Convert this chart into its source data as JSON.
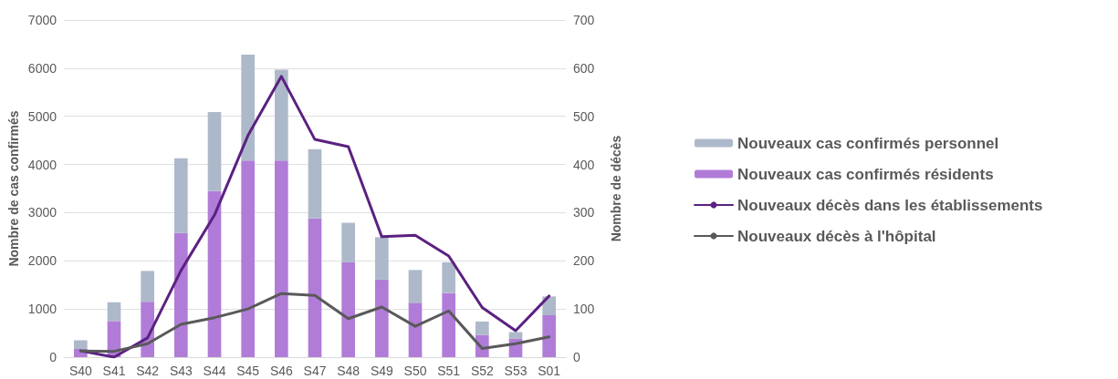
{
  "chart_data": {
    "type": "bar",
    "stacked": true,
    "ylabel": "Nombre de cas confirmés",
    "y2label": "Nombre de décès",
    "categories": [
      "S40",
      "S41",
      "S42",
      "S43",
      "S44",
      "S45",
      "S46",
      "S47",
      "S48",
      "S49",
      "S50",
      "S51",
      "S52",
      "S53",
      "S01"
    ],
    "series": [
      {
        "name": "Nouveaux cas confirmés résidents",
        "color": "#b07cd8",
        "values": [
          170,
          750,
          1150,
          2580,
          3450,
          4080,
          4080,
          2880,
          1970,
          1610,
          1130,
          1330,
          460,
          380,
          870
        ]
      },
      {
        "name": "Nouveaux cas confirmés personnel",
        "color": "#adb9ca",
        "values": [
          180,
          390,
          640,
          1550,
          1640,
          2200,
          1890,
          1440,
          820,
          880,
          680,
          640,
          280,
          140,
          390
        ]
      },
      {
        "name": "Nouveaux décès dans les établissements",
        "type": "line",
        "axis": "y2",
        "color": "#5b2180",
        "values": [
          13,
          0,
          40,
          180,
          295,
          460,
          583,
          452,
          437,
          250,
          253,
          210,
          103,
          55,
          127
        ]
      },
      {
        "name": "Nouveaux décès à l'hôpital",
        "type": "line",
        "axis": "y2",
        "color": "#595959",
        "values": [
          13,
          12,
          28,
          68,
          82,
          100,
          132,
          128,
          80,
          104,
          64,
          96,
          18,
          28,
          42
        ]
      }
    ],
    "ylim": [
      0,
      7000
    ],
    "yticks": [
      0,
      1000,
      2000,
      3000,
      4000,
      5000,
      6000,
      7000
    ],
    "y2lim": [
      0,
      700
    ],
    "y2ticks": [
      0,
      100,
      200,
      300,
      400,
      500,
      600,
      700
    ],
    "grid": "y",
    "legend": "right",
    "marker": "none",
    "line_style": "solid"
  }
}
